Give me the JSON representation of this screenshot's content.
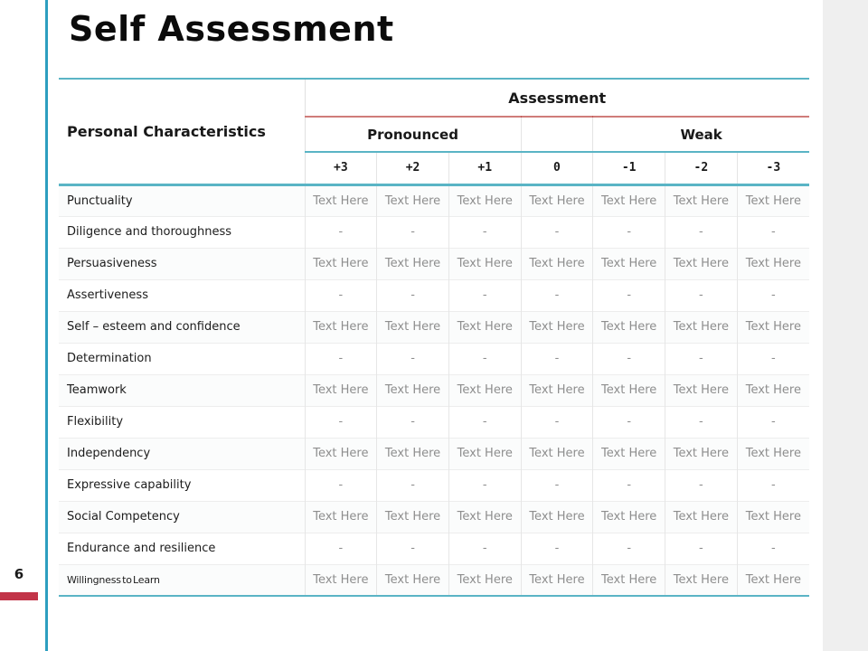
{
  "slide": {
    "title": "Self Assessment",
    "page_number": "6"
  },
  "colors": {
    "accent_teal": "#5AB4C5",
    "accent_teal_line": "#2D9FC0",
    "accent_red_rule": "#C0504D",
    "page_bar_red": "#C23448",
    "margin_gray": "#EFEFEF",
    "cell_text_gray": "#8E8E8E"
  },
  "table": {
    "corner_header": "Personal Characteristics",
    "group_header": "Assessment",
    "subheaders": [
      {
        "label": "Pronounced",
        "span": 3
      },
      {
        "label": "",
        "span": 1
      },
      {
        "label": "Weak",
        "span": 3
      }
    ],
    "scale": [
      "+3",
      "+2",
      "+1",
      "0",
      "-1",
      "-2",
      "-3"
    ],
    "rows": [
      {
        "label": "Punctuality",
        "cells": [
          "Text Here",
          "Text Here",
          "Text Here",
          "Text Here",
          "Text Here",
          "Text Here",
          "Text Here"
        ]
      },
      {
        "label": "Diligence and thoroughness",
        "cells": [
          "-",
          "-",
          "-",
          "-",
          "-",
          "-",
          "-"
        ]
      },
      {
        "label": "Persuasiveness",
        "cells": [
          "Text Here",
          "Text Here",
          "Text Here",
          "Text Here",
          "Text Here",
          "Text Here",
          "Text Here"
        ]
      },
      {
        "label": "Assertiveness",
        "cells": [
          "-",
          "-",
          "-",
          "-",
          "-",
          "-",
          "-"
        ]
      },
      {
        "label": "Self – esteem and confidence",
        "cells": [
          "Text Here",
          "Text Here",
          "Text Here",
          "Text Here",
          "Text Here",
          "Text Here",
          "Text Here"
        ]
      },
      {
        "label": "Determination",
        "cells": [
          "-",
          "-",
          "-",
          "-",
          "-",
          "-",
          "-"
        ]
      },
      {
        "label": "Teamwork",
        "cells": [
          "Text Here",
          "Text Here",
          "Text Here",
          "Text Here",
          "Text Here",
          "Text Here",
          "Text Here"
        ]
      },
      {
        "label": "Flexibility",
        "cells": [
          "-",
          "-",
          "-",
          "-",
          "-",
          "-",
          "-"
        ]
      },
      {
        "label": "Independency",
        "cells": [
          "Text Here",
          "Text Here",
          "Text Here",
          "Text Here",
          "Text Here",
          "Text Here",
          "Text Here"
        ]
      },
      {
        "label": "Expressive capability",
        "cells": [
          "-",
          "-",
          "-",
          "-",
          "-",
          "-",
          "-"
        ]
      },
      {
        "label": "Social Competency",
        "cells": [
          "Text Here",
          "Text Here",
          "Text Here",
          "Text Here",
          "Text Here",
          "Text Here",
          "Text Here"
        ]
      },
      {
        "label": "Endurance and resilience",
        "cells": [
          "-",
          "-",
          "-",
          "-",
          "-",
          "-",
          "-"
        ]
      },
      {
        "label": "Willingness to Learn",
        "cells": [
          "Text Here",
          "Text Here",
          "Text Here",
          "Text Here",
          "Text Here",
          "Text Here",
          "Text Here"
        ]
      }
    ]
  }
}
